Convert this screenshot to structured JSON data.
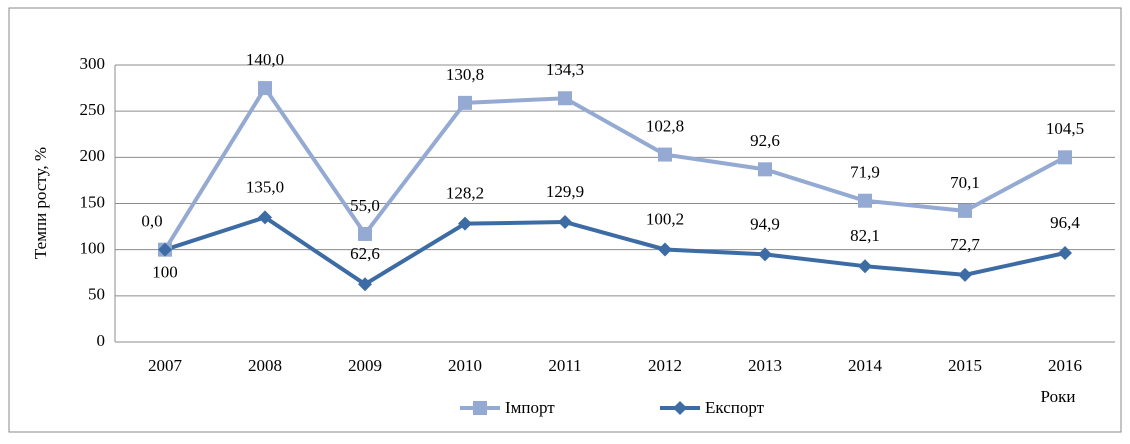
{
  "chart_data": {
    "type": "line",
    "y_label": "Темпи росту, %",
    "x_label": "Роки",
    "categories": [
      "2007",
      "2008",
      "2009",
      "2010",
      "2011",
      "2012",
      "2013",
      "2014",
      "2015",
      "2016"
    ],
    "series": [
      {
        "name": "Імпорт",
        "color": "#95aad3",
        "marker": "square",
        "values": [
          100,
          275,
          117,
          259,
          264,
          203,
          187,
          153,
          142,
          200
        ],
        "annotations": [
          "0,0",
          "140,0",
          "55,0",
          "130,8",
          "134,3",
          "102,8",
          "92,6",
          "71,9",
          "70,1",
          "104,5"
        ]
      },
      {
        "name": "Експорт",
        "color": "#3d6ca5",
        "marker": "diamond",
        "values": [
          100,
          135,
          62.6,
          128.2,
          129.9,
          100.2,
          94.9,
          82.1,
          72.7,
          96.4
        ],
        "value_labels": [
          "100",
          "135,0",
          "62,6",
          "128,2",
          "129,9",
          "100,2",
          "94,9",
          "82,1",
          "72,7",
          "96,4"
        ]
      }
    ],
    "ylim": [
      0,
      300
    ],
    "yticks": [
      0,
      50,
      100,
      150,
      200,
      250,
      300
    ],
    "grid": true,
    "legend": "bottom"
  }
}
